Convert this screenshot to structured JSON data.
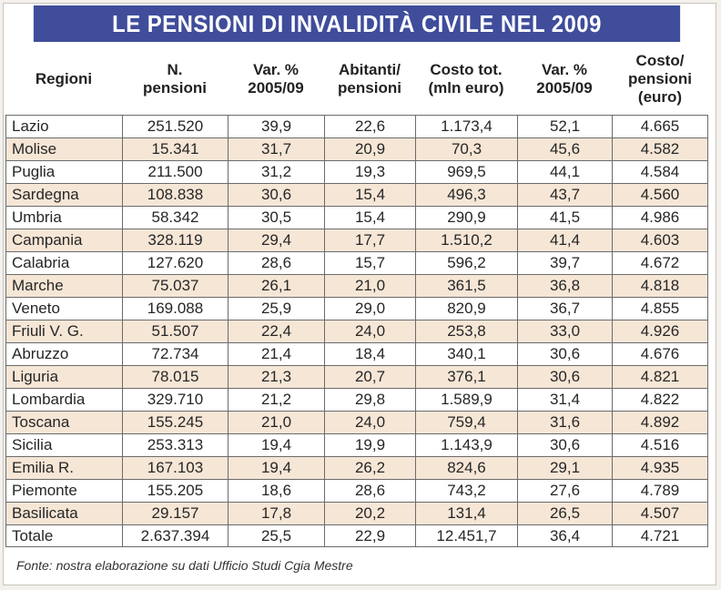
{
  "title": "LE PENSIONI DI INVALIDITÀ CIVILE NEL 2009",
  "headers": [
    "Regioni",
    "N.\npensioni",
    "Var. %\n2005/09",
    "Abitanti/\npensioni",
    "Costo tot.\n(mln euro)",
    "Var. %\n2005/09",
    "Costo/\npensioni\n(euro)"
  ],
  "rows": [
    [
      "Lazio",
      "251.520",
      "39,9",
      "22,6",
      "1.173,4",
      "52,1",
      "4.665"
    ],
    [
      "Molise",
      "15.341",
      "31,7",
      "20,9",
      "70,3",
      "45,6",
      "4.582"
    ],
    [
      "Puglia",
      "211.500",
      "31,2",
      "19,3",
      "969,5",
      "44,1",
      "4.584"
    ],
    [
      "Sardegna",
      "108.838",
      "30,6",
      "15,4",
      "496,3",
      "43,7",
      "4.560"
    ],
    [
      "Umbria",
      "58.342",
      "30,5",
      "15,4",
      "290,9",
      "41,5",
      "4.986"
    ],
    [
      "Campania",
      "328.119",
      "29,4",
      "17,7",
      "1.510,2",
      "41,4",
      "4.603"
    ],
    [
      "Calabria",
      "127.620",
      "28,6",
      "15,7",
      "596,2",
      "39,7",
      "4.672"
    ],
    [
      "Marche",
      "75.037",
      "26,1",
      "21,0",
      "361,5",
      "36,8",
      "4.818"
    ],
    [
      "Veneto",
      "169.088",
      "25,9",
      "29,0",
      "820,9",
      "36,7",
      "4.855"
    ],
    [
      "Friuli V. G.",
      "51.507",
      "22,4",
      "24,0",
      "253,8",
      "33,0",
      "4.926"
    ],
    [
      "Abruzzo",
      "72.734",
      "21,4",
      "18,4",
      "340,1",
      "30,6",
      "4.676"
    ],
    [
      "Liguria",
      "78.015",
      "21,3",
      "20,7",
      "376,1",
      "30,6",
      "4.821"
    ],
    [
      "Lombardia",
      "329.710",
      "21,2",
      "29,8",
      "1.589,9",
      "31,4",
      "4.822"
    ],
    [
      "Toscana",
      "155.245",
      "21,0",
      "24,0",
      "759,4",
      "31,6",
      "4.892"
    ],
    [
      "Sicilia",
      "253.313",
      "19,4",
      "19,9",
      "1.143,9",
      "30,6",
      "4.516"
    ],
    [
      "Emilia R.",
      "167.103",
      "19,4",
      "26,2",
      "824,6",
      "29,1",
      "4.935"
    ],
    [
      "Piemonte",
      "155.205",
      "18,6",
      "28,6",
      "743,2",
      "27,6",
      "4.789"
    ],
    [
      "Basilicata",
      "29.157",
      "17,8",
      "20,2",
      "131,4",
      "26,5",
      "4.507"
    ],
    [
      "Totale",
      "2.637.394",
      "25,5",
      "22,9",
      "12.451,7",
      "36,4",
      "4.721"
    ]
  ],
  "footer": "Fonte: nostra elaborazione su dati Ufficio Studi Cgia Mestre",
  "colors": {
    "title_bg": "#3f4d9b",
    "row_alt": "#f6e6d6"
  }
}
